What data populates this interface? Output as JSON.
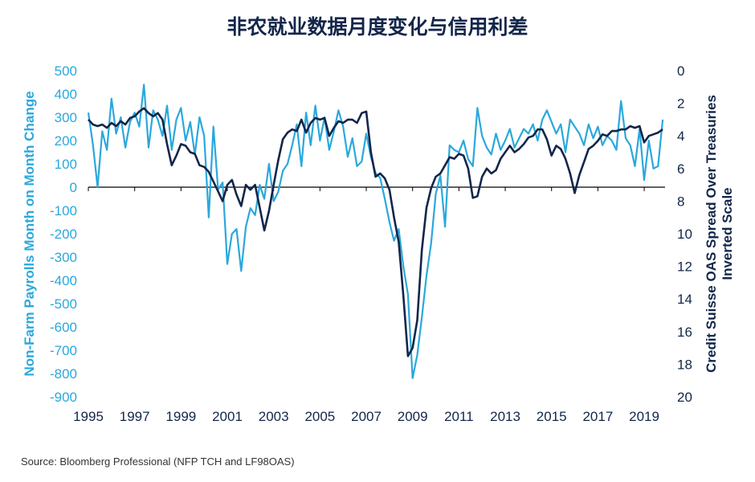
{
  "title": "非农就业数据月度变化与信用利差",
  "source": "Source: Bloomberg Professional (NFP TCH and LF98OAS)",
  "colors": {
    "nfp": "#2aa8dc",
    "oas": "#12264a",
    "axis": "#000000"
  },
  "chart_data": {
    "type": "line",
    "title": "非农就业数据月度变化与信用利差",
    "xlabel": "",
    "ylabel_left": "Non-Farm Payrolls Month on Month Change",
    "ylabel_right_lines": [
      "Credit Suisse OAS Spread Over Treasuries",
      "Inverted Scale"
    ],
    "xlim": [
      1995,
      2019.9
    ],
    "ylim_left": [
      -900,
      500
    ],
    "ylim_right": [
      0,
      20
    ],
    "right_axis_inverted": true,
    "x_ticks": [
      "1995",
      "1997",
      "1999",
      "2001",
      "2003",
      "2005",
      "2007",
      "2009",
      "2011",
      "2013",
      "2015",
      "2017",
      "2019"
    ],
    "y_ticks_left": [
      "500",
      "400",
      "300",
      "200",
      "100",
      "0",
      "-100",
      "-200",
      "-300",
      "-400",
      "-500",
      "-600",
      "-700",
      "-800",
      "-900"
    ],
    "y_ticks_right": [
      "0",
      "2",
      "4",
      "6",
      "8",
      "10",
      "12",
      "14",
      "16",
      "18",
      "20"
    ],
    "grid": false,
    "legend": "none",
    "series": [
      {
        "axis": "left",
        "color": "#2aa8dc",
        "x": [
          1995.0,
          1995.2,
          1995.4,
          1995.6,
          1995.8,
          1996.0,
          1996.2,
          1996.4,
          1996.6,
          1996.8,
          1997.0,
          1997.2,
          1997.4,
          1997.6,
          1997.8,
          1998.0,
          1998.2,
          1998.4,
          1998.6,
          1998.8,
          1999.0,
          1999.2,
          1999.4,
          1999.6,
          1999.8,
          2000.0,
          2000.2,
          2000.4,
          2000.6,
          2000.8,
          2001.0,
          2001.2,
          2001.4,
          2001.6,
          2001.8,
          2002.0,
          2002.2,
          2002.4,
          2002.6,
          2002.8,
          2003.0,
          2003.2,
          2003.4,
          2003.6,
          2003.8,
          2004.0,
          2004.2,
          2004.4,
          2004.6,
          2004.8,
          2005.0,
          2005.2,
          2005.4,
          2005.6,
          2005.8,
          2006.0,
          2006.2,
          2006.4,
          2006.6,
          2006.8,
          2007.0,
          2007.2,
          2007.4,
          2007.6,
          2007.8,
          2008.0,
          2008.2,
          2008.4,
          2008.6,
          2008.8,
          2009.0,
          2009.2,
          2009.4,
          2009.6,
          2009.8,
          2010.0,
          2010.2,
          2010.4,
          2010.6,
          2010.8,
          2011.0,
          2011.2,
          2011.4,
          2011.6,
          2011.8,
          2012.0,
          2012.2,
          2012.4,
          2012.6,
          2012.8,
          2013.0,
          2013.2,
          2013.4,
          2013.6,
          2013.8,
          2014.0,
          2014.2,
          2014.4,
          2014.6,
          2014.8,
          2015.0,
          2015.2,
          2015.4,
          2015.6,
          2015.8,
          2016.0,
          2016.2,
          2016.4,
          2016.6,
          2016.8,
          2017.0,
          2017.2,
          2017.4,
          2017.6,
          2017.8,
          2018.0,
          2018.2,
          2018.4,
          2018.6,
          2018.8,
          2019.0,
          2019.2,
          2019.4,
          2019.6,
          2019.8
        ],
        "values": [
          320,
          180,
          0,
          240,
          160,
          380,
          230,
          300,
          170,
          280,
          320,
          260,
          440,
          170,
          330,
          290,
          220,
          350,
          160,
          290,
          340,
          200,
          280,
          140,
          300,
          220,
          -130,
          260,
          -10,
          20,
          -330,
          -200,
          -180,
          -360,
          -170,
          -90,
          -120,
          10,
          -50,
          100,
          -60,
          -20,
          70,
          100,
          180,
          270,
          90,
          320,
          180,
          350,
          200,
          300,
          160,
          240,
          330,
          260,
          130,
          210,
          90,
          110,
          230,
          130,
          60,
          40,
          -50,
          -150,
          -230,
          -180,
          -340,
          -460,
          -820,
          -720,
          -560,
          -380,
          -240,
          -30,
          50,
          -170,
          180,
          160,
          150,
          200,
          120,
          90,
          340,
          220,
          170,
          140,
          230,
          160,
          200,
          250,
          170,
          210,
          250,
          230,
          270,
          200,
          290,
          330,
          280,
          230,
          270,
          150,
          290,
          260,
          230,
          180,
          270,
          210,
          260,
          180,
          220,
          200,
          160,
          370,
          210,
          180,
          90,
          250,
          30,
          200,
          80,
          90,
          290
        ]
      },
      {
        "axis": "right",
        "color": "#12264a",
        "x": [
          1995.0,
          1995.2,
          1995.4,
          1995.6,
          1995.8,
          1996.0,
          1996.2,
          1996.4,
          1996.6,
          1996.8,
          1997.0,
          1997.2,
          1997.4,
          1997.6,
          1997.8,
          1998.0,
          1998.2,
          1998.4,
          1998.6,
          1998.8,
          1999.0,
          1999.2,
          1999.4,
          1999.6,
          1999.8,
          2000.0,
          2000.2,
          2000.4,
          2000.6,
          2000.8,
          2001.0,
          2001.2,
          2001.4,
          2001.6,
          2001.8,
          2002.0,
          2002.2,
          2002.4,
          2002.6,
          2002.8,
          2003.0,
          2003.2,
          2003.4,
          2003.6,
          2003.8,
          2004.0,
          2004.2,
          2004.4,
          2004.6,
          2004.8,
          2005.0,
          2005.2,
          2005.4,
          2005.6,
          2005.8,
          2006.0,
          2006.2,
          2006.4,
          2006.6,
          2006.8,
          2007.0,
          2007.2,
          2007.4,
          2007.6,
          2007.8,
          2008.0,
          2008.2,
          2008.4,
          2008.6,
          2008.8,
          2009.0,
          2009.2,
          2009.4,
          2009.6,
          2009.8,
          2010.0,
          2010.2,
          2010.4,
          2010.6,
          2010.8,
          2011.0,
          2011.2,
          2011.4,
          2011.6,
          2011.8,
          2012.0,
          2012.2,
          2012.4,
          2012.6,
          2012.8,
          2013.0,
          2013.2,
          2013.4,
          2013.6,
          2013.8,
          2014.0,
          2014.2,
          2014.4,
          2014.6,
          2014.8,
          2015.0,
          2015.2,
          2015.4,
          2015.6,
          2015.8,
          2016.0,
          2016.2,
          2016.4,
          2016.6,
          2016.8,
          2017.0,
          2017.2,
          2017.4,
          2017.6,
          2017.8,
          2018.0,
          2018.2,
          2018.4,
          2018.6,
          2018.8,
          2019.0,
          2019.2,
          2019.4,
          2019.6,
          2019.8
        ],
        "values": [
          3.0,
          3.3,
          3.4,
          3.3,
          3.5,
          3.2,
          3.4,
          3.1,
          3.3,
          2.9,
          2.8,
          2.5,
          2.3,
          2.6,
          2.8,
          2.6,
          3.0,
          4.5,
          5.8,
          5.2,
          4.5,
          4.6,
          5.0,
          5.1,
          5.8,
          5.9,
          6.2,
          6.8,
          7.4,
          8.0,
          7.0,
          6.7,
          7.6,
          8.3,
          7.0,
          7.3,
          7.0,
          8.4,
          9.8,
          8.6,
          7.0,
          5.5,
          4.2,
          3.8,
          3.6,
          3.7,
          3.0,
          3.8,
          3.2,
          2.9,
          3.0,
          2.9,
          4.0,
          3.5,
          3.1,
          3.2,
          3.0,
          3.0,
          3.2,
          2.6,
          2.5,
          5.0,
          6.5,
          6.3,
          6.6,
          7.3,
          9.0,
          10.5,
          13.8,
          17.5,
          17.0,
          15.3,
          11.0,
          8.4,
          7.2,
          6.5,
          6.3,
          5.8,
          5.3,
          5.4,
          5.1,
          5.2,
          6.0,
          7.8,
          7.7,
          6.5,
          6.0,
          6.3,
          6.1,
          5.4,
          5.0,
          4.6,
          5.0,
          4.8,
          4.5,
          4.1,
          4.0,
          3.6,
          3.6,
          4.2,
          5.2,
          4.6,
          4.8,
          5.4,
          6.3,
          7.5,
          6.4,
          5.6,
          4.8,
          4.6,
          4.3,
          3.9,
          4.0,
          3.7,
          3.7,
          3.6,
          3.6,
          3.4,
          3.5,
          3.4,
          4.4,
          4.0,
          3.9,
          3.8,
          3.6
        ]
      }
    ]
  }
}
